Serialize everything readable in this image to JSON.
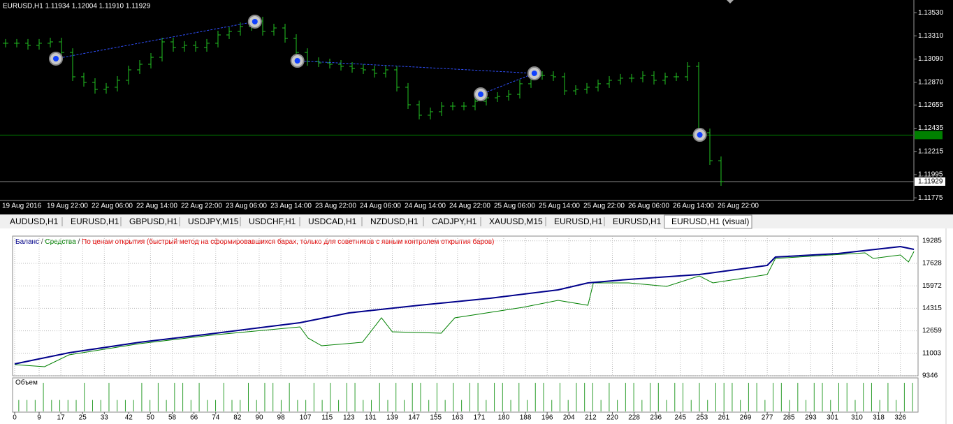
{
  "chart_data": [
    {
      "type": "ohlc-price",
      "title": "EURUSD,H1  1.11934 1.12004 1.11910 1.11929",
      "color": "#22c322",
      "values": [
        1.1324,
        1.1324,
        1.1322,
        1.1324,
        1.13253,
        1.13153,
        1.12922,
        1.12869,
        1.12803,
        1.12823,
        1.12889,
        1.12988,
        1.13041,
        1.13107,
        1.13253,
        1.132,
        1.1322,
        1.132,
        1.1324,
        1.13319,
        1.13352,
        1.13398,
        1.13451,
        1.13352,
        1.13385,
        1.13286,
        1.13153,
        1.13067,
        1.13054,
        1.13041,
        1.13021,
        1.13001,
        1.12988,
        1.12955,
        1.12988,
        1.12823,
        1.12657,
        1.12558,
        1.12591,
        1.12644,
        1.12644,
        1.12644,
        1.1269,
        1.12723,
        1.12736,
        1.12756,
        1.12856,
        1.12935,
        1.12935,
        1.12922,
        1.12789,
        1.12803,
        1.12823,
        1.12856,
        1.12889,
        1.12909,
        1.12909,
        1.12935,
        1.12889,
        1.12922,
        1.12922,
        1.13021,
        1.12392,
        1.12127,
        1.11929
      ],
      "time_labels": [
        "19 Aug 2016",
        "19 Aug 22:00",
        "22 Aug 06:00",
        "22 Aug 14:00",
        "22 Aug 22:00",
        "23 Aug 06:00",
        "23 Aug 14:00",
        "23 Aug 22:00",
        "24 Aug 06:00",
        "24 Aug 14:00",
        "24 Aug 22:00",
        "25 Aug 06:00",
        "25 Aug 14:00",
        "25 Aug 22:00",
        "26 Aug 06:00",
        "26 Aug 14:00",
        "26 Aug 22:00"
      ],
      "ylim": [
        1.1175,
        1.1365
      ],
      "yticks": [
        {
          "value": 1.1353,
          "label": "1.13530"
        },
        {
          "value": 1.1331,
          "label": "1.13310"
        },
        {
          "value": 1.1309,
          "label": "1.13090"
        },
        {
          "value": 1.1287,
          "label": "1.12870"
        },
        1.12655,
        1.12435,
        1.12215,
        1.11995,
        1.11775
      ],
      "bid_line": 1.11929,
      "level_line": 1.1237,
      "trades": [
        {
          "x": 4.5,
          "y": 1.13094
        },
        {
          "x": 22.3,
          "y": 1.13445
        },
        {
          "x": 26.1,
          "y": 1.13074
        },
        {
          "x": 42.5,
          "y": 1.12756
        },
        {
          "x": 47.3,
          "y": 1.12955
        },
        {
          "x": 62.1,
          "y": 1.12372
        }
      ]
    },
    {
      "type": "line",
      "legend": [
        "Баланс",
        " / ",
        "Средства",
        " / ",
        "По ценам открытия (быстрый метод на сформировавшихся барах, только для советников с явным контролем открытия баров)"
      ],
      "legend_colors": [
        "#00008b",
        "#333333",
        "#008000",
        "#333333",
        "#e00000"
      ],
      "series": [
        {
          "name": "Баланс",
          "color": "#00008b",
          "x": [
            0,
            20,
            46,
            72,
            105,
            123,
            149,
            175,
            200,
            211,
            226,
            252,
            277,
            280,
            303,
            326,
            331
          ],
          "values": [
            10220,
            11044,
            11815,
            12432,
            13255,
            13976,
            14541,
            15056,
            15673,
            16188,
            16445,
            16805,
            17474,
            18091,
            18348,
            18863,
            18657
          ]
        },
        {
          "name": "Средства",
          "color": "#008000",
          "x": [
            0,
            11,
            20,
            46,
            72,
            105,
            108,
            113,
            128,
            135,
            139,
            157,
            162,
            187,
            200,
            211,
            213,
            226,
            240,
            252,
            257,
            277,
            280,
            313,
            316,
            326,
            329,
            331
          ],
          "values": [
            10169,
            10015,
            10889,
            11712,
            12329,
            12947,
            12124,
            11558,
            11815,
            13616,
            12587,
            12484,
            13616,
            14387,
            14901,
            14541,
            16188,
            16188,
            15930,
            16702,
            16188,
            16805,
            17988,
            18399,
            17988,
            18245,
            17731,
            18502
          ]
        }
      ],
      "xlim": [
        0,
        332
      ],
      "xticks": [
        0,
        9,
        17,
        25,
        33,
        42,
        50,
        58,
        66,
        74,
        82,
        90,
        98,
        107,
        115,
        123,
        131,
        139,
        147,
        155,
        163,
        171,
        180,
        188,
        196,
        204,
        212,
        220,
        228,
        236,
        245,
        253,
        261,
        269,
        277,
        285,
        293,
        301,
        310,
        318,
        326
      ],
      "ylim": [
        9346,
        19634
      ],
      "yticks": [
        9346,
        11003,
        12659,
        14315,
        15972,
        17628,
        19285
      ],
      "grid": true
    },
    {
      "type": "volume",
      "title": "Объем",
      "color": "#2e9e2e",
      "ylim": [
        0,
        1.05
      ],
      "values": [
        0.4,
        0.4,
        0.4,
        1,
        0.4,
        0.4,
        0.4,
        0.4,
        1,
        0.4,
        0.4,
        1,
        0.4,
        0.4,
        0.4,
        1,
        0.4,
        1,
        0.4,
        1,
        1,
        0.4,
        1,
        0.4,
        0.4,
        1,
        0.4,
        0.4,
        1,
        0.4,
        1,
        1,
        0.4,
        1,
        0.4,
        0.4,
        1,
        0.4,
        1,
        0.4,
        1,
        1,
        0.4,
        0.4,
        1,
        0.4,
        1,
        0.4,
        1,
        1,
        0.4,
        1,
        0.4,
        1,
        0.4,
        1,
        1,
        0.4,
        1,
        1,
        0.4,
        1,
        0.4,
        1,
        1,
        0.4,
        1,
        0.4,
        1,
        1,
        1,
        0.4,
        1,
        0.4,
        1,
        1,
        0.4,
        1,
        1,
        0.4,
        1,
        1,
        0.4,
        1,
        0.4,
        1,
        1,
        1,
        0.4,
        1,
        1,
        0.4,
        1,
        1,
        0.4,
        1,
        0.4,
        1,
        1,
        0.4,
        1,
        1,
        0.4,
        1,
        1,
        0.4,
        1,
        0.4,
        1,
        1
      ]
    }
  ],
  "tabs": [
    "AUDUSD,H1",
    "EURUSD,H1",
    "GBPUSD,H1",
    "USDJPY,M15",
    "USDCHF,H1",
    "USDCAD,H1",
    "NZDUSD,H1",
    "CADJPY,H1",
    "XAUUSD,M15",
    "EURUSD,H1",
    "EURUSD,H1",
    "EURUSD,H1 (visual)"
  ]
}
